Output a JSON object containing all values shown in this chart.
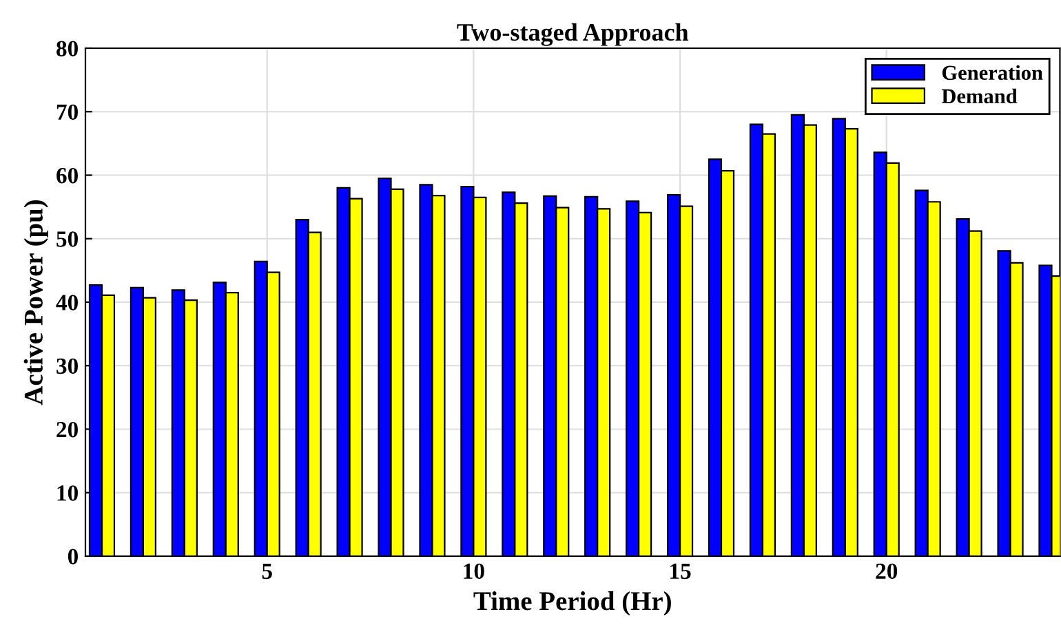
{
  "chart_data": {
    "type": "bar",
    "title": "Two-staged Approach",
    "xlabel": "Time Period (Hr)",
    "ylabel": "Active Power (pu)",
    "x": [
      1,
      2,
      3,
      4,
      5,
      6,
      7,
      8,
      9,
      10,
      11,
      12,
      13,
      14,
      15,
      16,
      17,
      18,
      19,
      20,
      21,
      22,
      23,
      24
    ],
    "series": [
      {
        "name": "Generation",
        "color": "#0000ff",
        "values": [
          42.7,
          42.3,
          41.9,
          43.1,
          46.4,
          53,
          58,
          59.5,
          58.5,
          58.2,
          57.3,
          56.7,
          56.6,
          55.9,
          56.9,
          62.5,
          68,
          69.5,
          68.9,
          63.6,
          57.6,
          53.1,
          48.1,
          45.8
        ]
      },
      {
        "name": "Demand",
        "color": "#ffff00",
        "values": [
          41.1,
          40.7,
          40.3,
          41.5,
          44.7,
          51,
          56.3,
          57.8,
          56.8,
          56.5,
          55.6,
          54.9,
          54.7,
          54.1,
          55.1,
          60.7,
          66.5,
          67.9,
          67.3,
          61.9,
          55.8,
          51.2,
          46.2,
          44.1
        ]
      }
    ],
    "xlim": [
      0.6,
      24.2
    ],
    "xticks": [
      5,
      10,
      15,
      20
    ],
    "ylim": [
      0,
      80
    ],
    "yticks": [
      0,
      10,
      20,
      30,
      40,
      50,
      60,
      70,
      80
    ],
    "grid": true,
    "legend": "top right"
  }
}
